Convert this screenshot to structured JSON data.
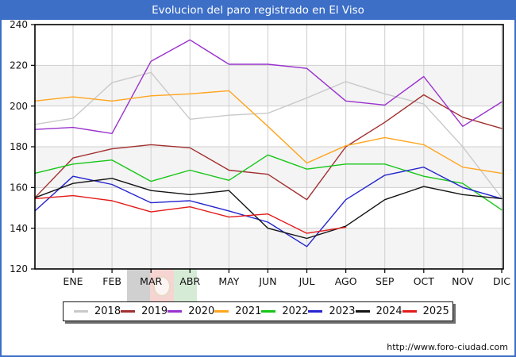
{
  "frame": {
    "title": "Evolucion del paro registrado en El Viso",
    "footer_url": "http://www.foro-ciudad.com"
  },
  "chart_data": {
    "type": "line",
    "title": "Evolucion del paro registrado en El Viso",
    "x_labels": [
      "ENE",
      "FEB",
      "MAR",
      "ABR",
      "MAY",
      "JUN",
      "JUL",
      "AGO",
      "SEP",
      "OCT",
      "NOV",
      "DIC"
    ],
    "y_ticks": [
      240,
      220,
      200,
      180,
      160,
      140,
      120
    ],
    "ylim": [
      120,
      240
    ],
    "grid": {
      "vertical_monthly": true,
      "horizontal_step": 20,
      "band_color": "#f4f4f4",
      "line_color": "#cfcfcf"
    },
    "legend_position": "bottom",
    "first_point_at_left_axis": true,
    "series": [
      {
        "name": "2018",
        "color": "#c9c9c9",
        "values": [
          191,
          194,
          211.5,
          216.5,
          193.5,
          195.5,
          196.5,
          204,
          212,
          206,
          201,
          180,
          155
        ]
      },
      {
        "name": "2019",
        "color": "#a23030",
        "values": [
          155,
          174.5,
          179,
          181,
          179.5,
          168.5,
          166.5,
          154,
          180,
          192,
          205.5,
          194.5,
          189
        ]
      },
      {
        "name": "2020",
        "color": "#9a32cd",
        "values": [
          188.5,
          189.5,
          186.5,
          222,
          232.5,
          220.5,
          220.5,
          218.5,
          202.5,
          200.5,
          214.5,
          190,
          202
        ]
      },
      {
        "name": "2021",
        "color": "#ffa51e",
        "values": [
          202.5,
          204.5,
          202.5,
          205,
          206,
          207.5,
          190,
          172,
          180.5,
          184.5,
          181,
          170,
          167
        ]
      },
      {
        "name": "2022",
        "color": "#17c617",
        "values": [
          167,
          171.5,
          173.5,
          163,
          168.5,
          163.5,
          176,
          169,
          171.5,
          171.5,
          165.5,
          162,
          149
        ]
      },
      {
        "name": "2023",
        "color": "#2525cf",
        "values": [
          148.5,
          165.5,
          161.5,
          152.5,
          153.5,
          148.5,
          143,
          131,
          154,
          166,
          170,
          160,
          154.5
        ]
      },
      {
        "name": "2024",
        "color": "#141414",
        "values": [
          155,
          162,
          164.5,
          158.5,
          156.5,
          158.5,
          140,
          135,
          141,
          154,
          160.5,
          156.5,
          154.5
        ]
      },
      {
        "name": "2025",
        "color": "#e31a1a",
        "values": [
          154.5,
          156,
          153.5,
          148,
          150.5,
          145.5,
          147,
          137.5,
          140.5
        ]
      }
    ]
  },
  "watermark": {
    "stripe_colors": [
      "rgba(40,40,40,0.22)",
      "rgba(205,40,30,0.20)",
      "rgba(0,130,0,0.16)"
    ]
  }
}
